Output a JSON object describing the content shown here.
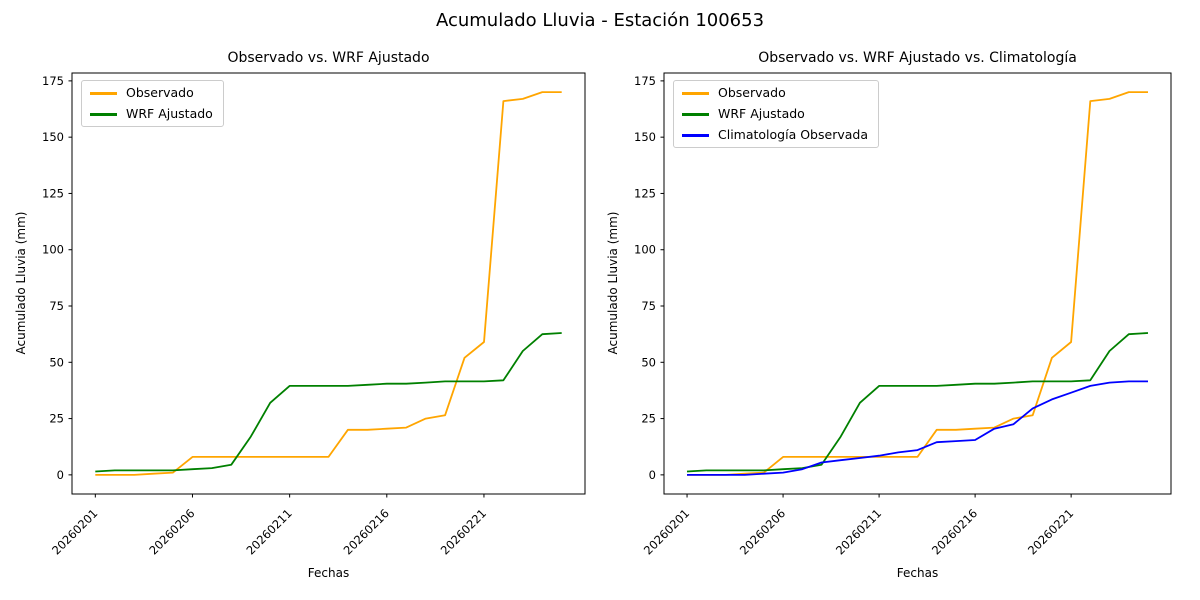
{
  "figure_title": "Acumulado Lluvia - Estación 100653",
  "colors": {
    "observado": "#ffa500",
    "wrf_ajustado": "#008000",
    "climatologia": "#0000ff",
    "axis": "#000000",
    "legend_border": "#cccccc"
  },
  "chart_data": [
    {
      "type": "line",
      "title": "Observado vs. WRF Ajustado",
      "xlabel": "Fechas",
      "ylabel": "Acumulado Lluvia (mm)",
      "x": [
        "20260201",
        "20260202",
        "20260203",
        "20260204",
        "20260205",
        "20260206",
        "20260207",
        "20260208",
        "20260209",
        "20260210",
        "20260211",
        "20260212",
        "20260213",
        "20260214",
        "20260215",
        "20260216",
        "20260217",
        "20260218",
        "20260219",
        "20260220",
        "20260221",
        "20260222",
        "20260223",
        "20260224",
        "20260225"
      ],
      "x_tick_labels": [
        "20260201",
        "20260206",
        "20260211",
        "20260216",
        "20260221"
      ],
      "x_tick_indices": [
        0,
        5,
        10,
        15,
        20
      ],
      "y_ticks": [
        0,
        25,
        50,
        75,
        100,
        125,
        150,
        175
      ],
      "xlim_days": [
        -1.2,
        25.2
      ],
      "ylim": [
        -8.5,
        178.5
      ],
      "grid": false,
      "legend_position": "upper left",
      "series": [
        {
          "name": "Observado",
          "color": "#ffa500",
          "values": [
            0,
            0,
            0,
            0.5,
            1,
            8,
            8,
            8,
            8,
            8,
            8,
            8,
            8,
            20,
            20,
            20.5,
            21,
            25,
            26.5,
            52,
            59,
            166,
            167,
            170,
            170
          ]
        },
        {
          "name": "WRF Ajustado",
          "color": "#008000",
          "values": [
            1.5,
            2,
            2,
            2,
            2,
            2.5,
            3,
            4.5,
            17,
            32,
            39.5,
            39.5,
            39.5,
            39.5,
            40,
            40.5,
            40.5,
            41,
            41.5,
            41.5,
            41.5,
            42,
            55,
            62.5,
            63
          ]
        }
      ]
    },
    {
      "type": "line",
      "title": "Observado vs. WRF Ajustado vs. Climatología",
      "xlabel": "Fechas",
      "ylabel": "Acumulado Lluvia (mm)",
      "x": [
        "20260201",
        "20260202",
        "20260203",
        "20260204",
        "20260205",
        "20260206",
        "20260207",
        "20260208",
        "20260209",
        "20260210",
        "20260211",
        "20260212",
        "20260213",
        "20260214",
        "20260215",
        "20260216",
        "20260217",
        "20260218",
        "20260219",
        "20260220",
        "20260221",
        "20260222",
        "20260223",
        "20260224",
        "20260225"
      ],
      "x_tick_labels": [
        "20260201",
        "20260206",
        "20260211",
        "20260216",
        "20260221"
      ],
      "x_tick_indices": [
        0,
        5,
        10,
        15,
        20
      ],
      "y_ticks": [
        0,
        25,
        50,
        75,
        100,
        125,
        150,
        175
      ],
      "xlim_days": [
        -1.2,
        25.2
      ],
      "ylim": [
        -8.5,
        178.5
      ],
      "grid": false,
      "legend_position": "upper left",
      "series": [
        {
          "name": "Observado",
          "color": "#ffa500",
          "values": [
            0,
            0,
            0,
            0.5,
            1,
            8,
            8,
            8,
            8,
            8,
            8,
            8,
            8,
            20,
            20,
            20.5,
            21,
            25,
            26.5,
            52,
            59,
            166,
            167,
            170,
            170
          ]
        },
        {
          "name": "WRF Ajustado",
          "color": "#008000",
          "values": [
            1.5,
            2,
            2,
            2,
            2,
            2.5,
            3,
            4.5,
            17,
            32,
            39.5,
            39.5,
            39.5,
            39.5,
            40,
            40.5,
            40.5,
            41,
            41.5,
            41.5,
            41.5,
            42,
            55,
            62.5,
            63
          ]
        },
        {
          "name": "Climatología Observada",
          "color": "#0000ff",
          "values": [
            0,
            0,
            0,
            0,
            0.5,
            1,
            2.5,
            5.5,
            6.5,
            7.5,
            8.5,
            10,
            11,
            14.5,
            15,
            15.5,
            20.5,
            22.5,
            29.5,
            33.5,
            36.5,
            39.5,
            41,
            41.5,
            41.5
          ]
        }
      ]
    }
  ]
}
